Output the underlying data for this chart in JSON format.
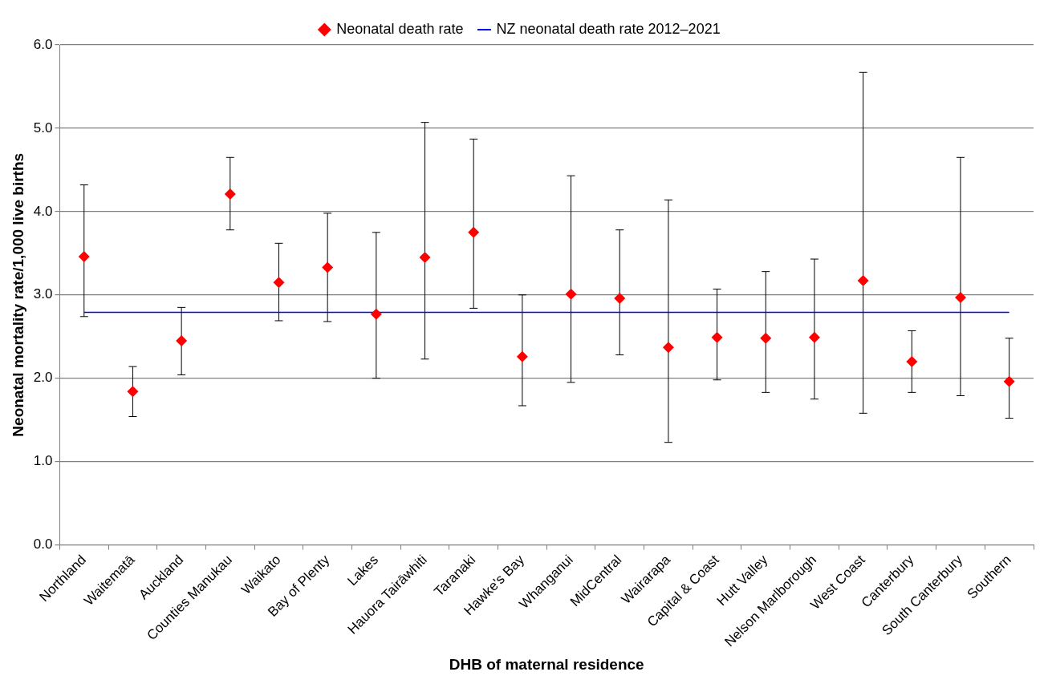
{
  "chart_data": {
    "type": "scatter",
    "xlabel": "DHB of maternal residence",
    "ylabel": "Neonatal mortality rate/1,000 live births",
    "categories": [
      "Northland",
      "Waitematā",
      "Auckland",
      "Counties Manukau",
      "Waikato",
      "Bay of Plenty",
      "Lakes",
      "Hauora Tairāwhiti",
      "Taranaki",
      "Hawke's Bay",
      "Whanganui",
      "MidCentral",
      "Wairarapa",
      "Capital & Coast",
      "Hutt Valley",
      "Nelson Marlborough",
      "West Coast",
      "Canterbury",
      "South Canterbury",
      "Southern"
    ],
    "series": [
      {
        "name": "Neonatal death rate",
        "color": "#ff0000",
        "marker": "diamond",
        "values": [
          3.46,
          1.84,
          2.45,
          4.21,
          3.15,
          3.33,
          2.77,
          3.45,
          3.75,
          2.26,
          3.01,
          2.96,
          2.37,
          2.49,
          2.48,
          2.49,
          3.17,
          2.2,
          2.97,
          1.96
        ],
        "errors": [
          [
            2.74,
            4.32
          ],
          [
            1.54,
            2.14
          ],
          [
            2.04,
            2.85
          ],
          [
            3.78,
            4.65
          ],
          [
            2.69,
            3.62
          ],
          [
            2.68,
            3.98
          ],
          [
            2.0,
            3.75
          ],
          [
            2.23,
            5.07
          ],
          [
            2.84,
            4.87
          ],
          [
            1.67,
            3.0
          ],
          [
            1.95,
            4.43
          ],
          [
            2.28,
            3.78
          ],
          [
            1.23,
            4.14
          ],
          [
            1.98,
            3.07
          ],
          [
            1.83,
            3.28
          ],
          [
            1.75,
            3.43
          ],
          [
            1.58,
            5.67
          ],
          [
            1.83,
            2.57
          ],
          [
            1.79,
            4.65
          ],
          [
            1.52,
            2.48
          ]
        ]
      },
      {
        "name": "NZ neonatal death rate 2012–2021",
        "type": "line",
        "color": "#0000ff",
        "marker": "none",
        "line_style": "solid",
        "values": [
          2.79,
          2.79,
          2.79,
          2.79,
          2.79,
          2.79,
          2.79,
          2.79,
          2.79,
          2.79,
          2.79,
          2.79,
          2.79,
          2.79,
          2.79,
          2.79,
          2.79,
          2.79,
          2.79,
          2.79
        ]
      }
    ],
    "ylim": [
      0,
      6
    ],
    "yticks": [
      {
        "value": 0,
        "label": "0.0"
      },
      {
        "value": 1,
        "label": "1.0"
      },
      {
        "value": 2,
        "label": "2.0"
      },
      {
        "value": 3,
        "label": "3.0"
      },
      {
        "value": 4,
        "label": "4.0"
      },
      {
        "value": 5,
        "label": "5.0"
      },
      {
        "value": 6,
        "label": "6.0"
      }
    ],
    "grid": "y",
    "legend": "top"
  }
}
